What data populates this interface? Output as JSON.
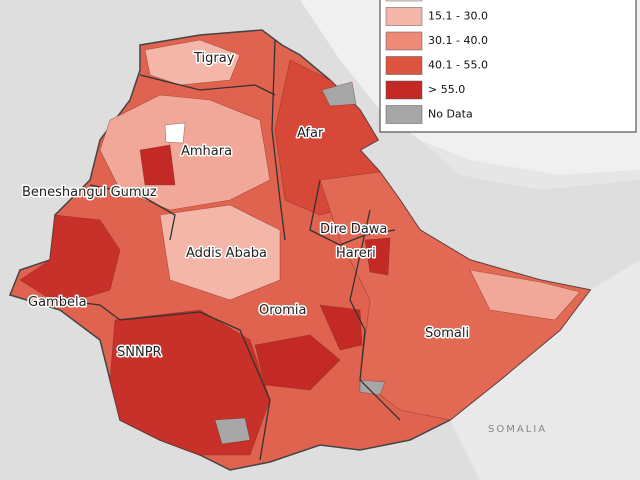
{
  "map": {
    "region_labels": [
      "Tigray",
      "Afar",
      "Amhara",
      "Beneshangul Gumuz",
      "Dire Dawa",
      "Hareri",
      "Addis Ababa",
      "Gambela",
      "Oromia",
      "SNNPR",
      "Somali"
    ],
    "neighbor_label": "SOMALIA",
    "legend": [
      {
        "color": "#fbe1d9"
      },
      {
        "label": "15.1 - 30.0",
        "color": "#f4b6a9"
      },
      {
        "label": "30.1 - 40.0",
        "color": "#ec8a77"
      },
      {
        "label": "40.1 - 55.0",
        "color": "#dd5441"
      },
      {
        "label": "> 55.0",
        "color": "#c42a25"
      },
      {
        "label": "No Data",
        "color": "#a7a7a7"
      }
    ]
  }
}
